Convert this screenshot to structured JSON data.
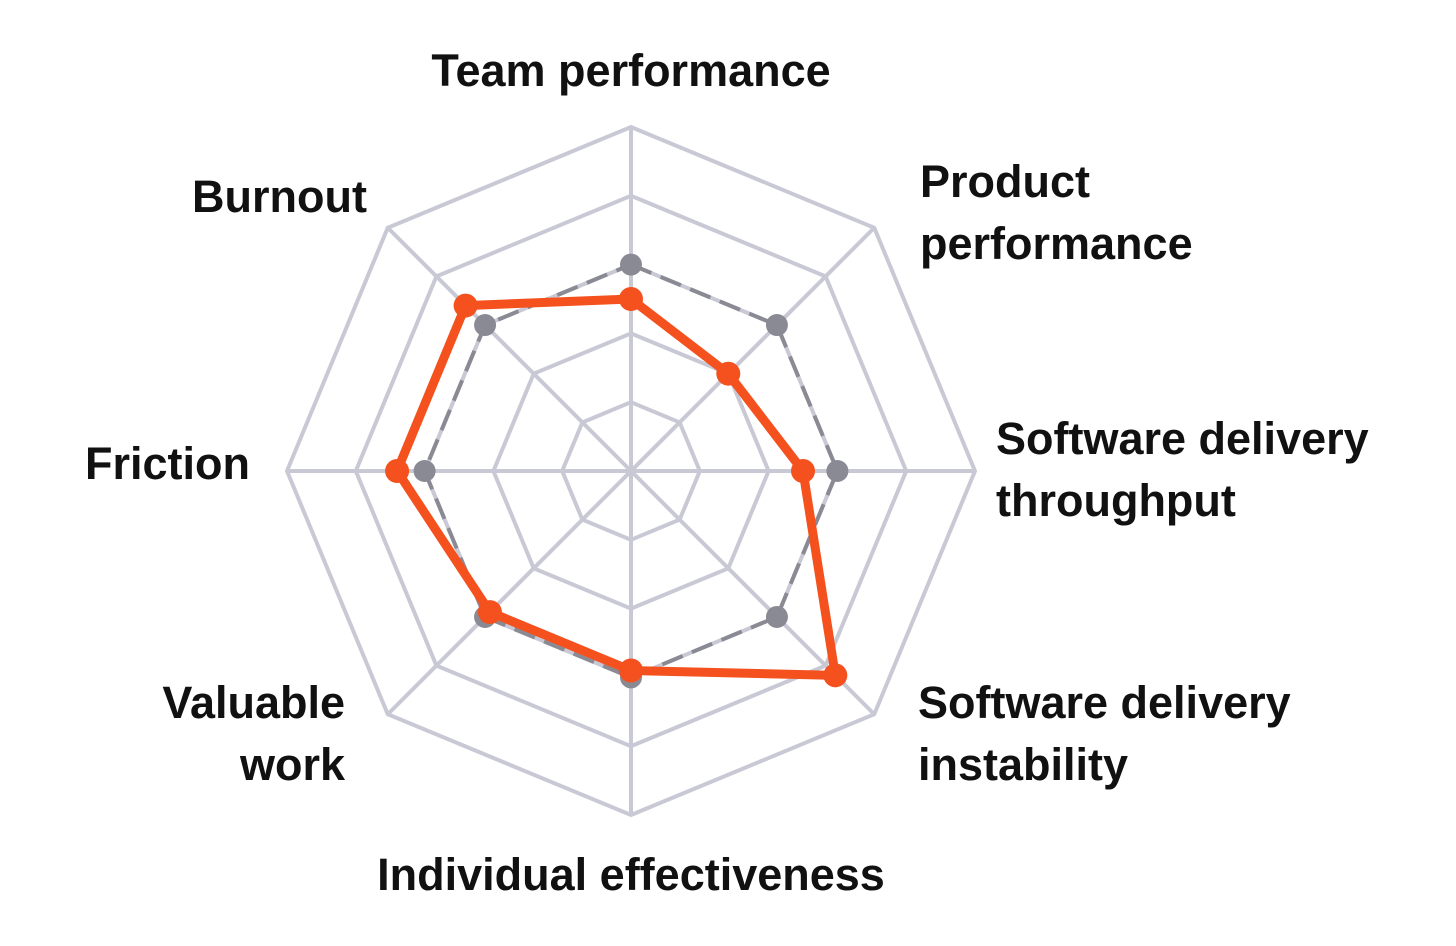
{
  "chart_data": {
    "type": "radar",
    "categories": [
      [
        "Team performance"
      ],
      [
        "Product",
        "performance"
      ],
      [
        "Software delivery",
        "throughput"
      ],
      [
        "Software delivery",
        "instability"
      ],
      [
        "Individual effectiveness"
      ],
      [
        "Valuable",
        "work"
      ],
      [
        "Friction"
      ],
      [
        "Burnout"
      ]
    ],
    "rlim": [
      0,
      5
    ],
    "rticks": [
      1,
      2,
      3,
      4,
      5
    ],
    "grid": true,
    "series": [
      {
        "color": "#8a8a94",
        "dashed": true,
        "values": [
          3,
          3,
          3,
          3,
          3,
          3,
          3,
          3
        ]
      },
      {
        "color": "#f4511e",
        "dashed": false,
        "values": [
          2.5,
          2,
          2.5,
          4.2,
          2.9,
          2.9,
          3.4,
          3.4
        ]
      }
    ]
  }
}
